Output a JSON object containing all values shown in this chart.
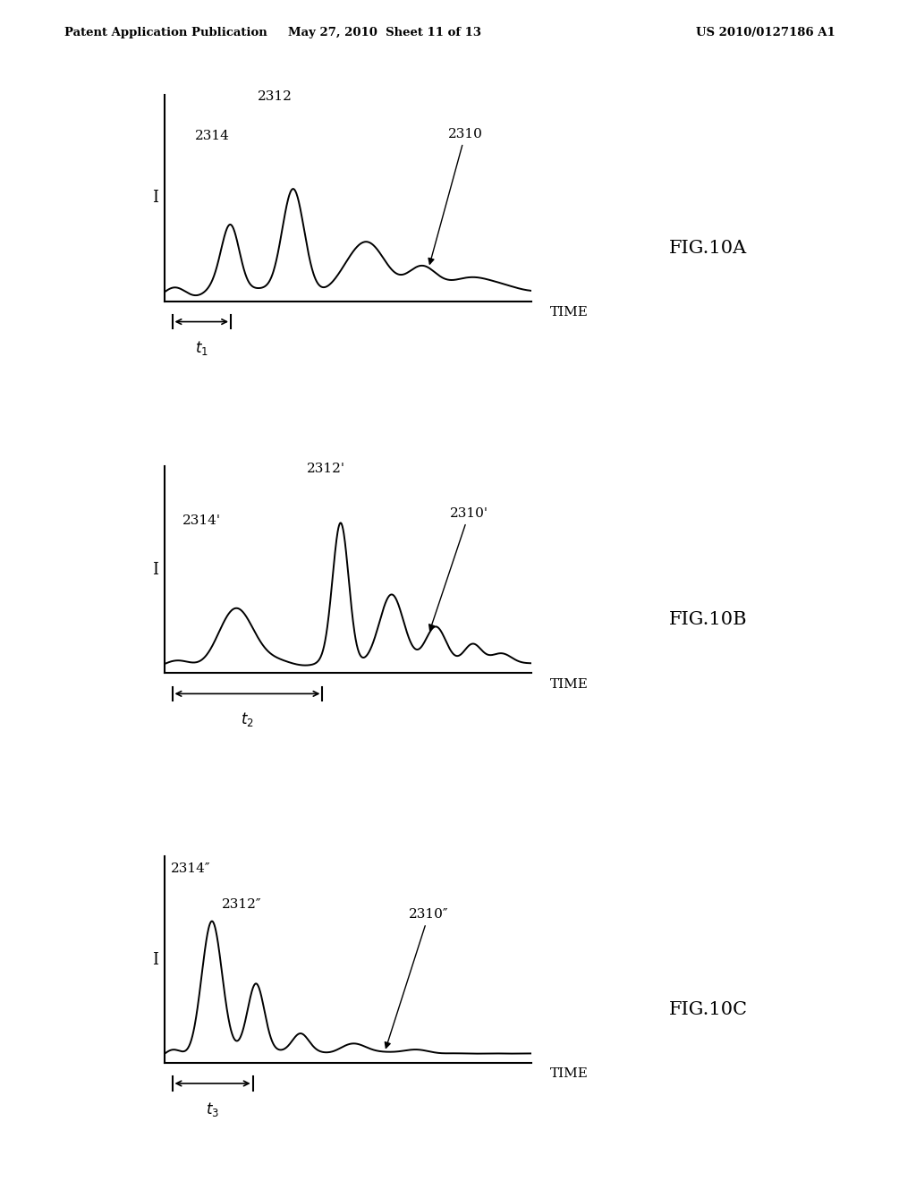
{
  "header_left": "Patent Application Publication",
  "header_mid": "May 27, 2010  Sheet 11 of 13",
  "header_right": "US 2010/0127186 A1",
  "fig_labels": [
    "FIG.10A",
    "FIG.10B",
    "FIG.10C"
  ],
  "time_label": "TIME",
  "I_label": "I",
  "curve_color": "#000000",
  "bg_color": "#ffffff"
}
